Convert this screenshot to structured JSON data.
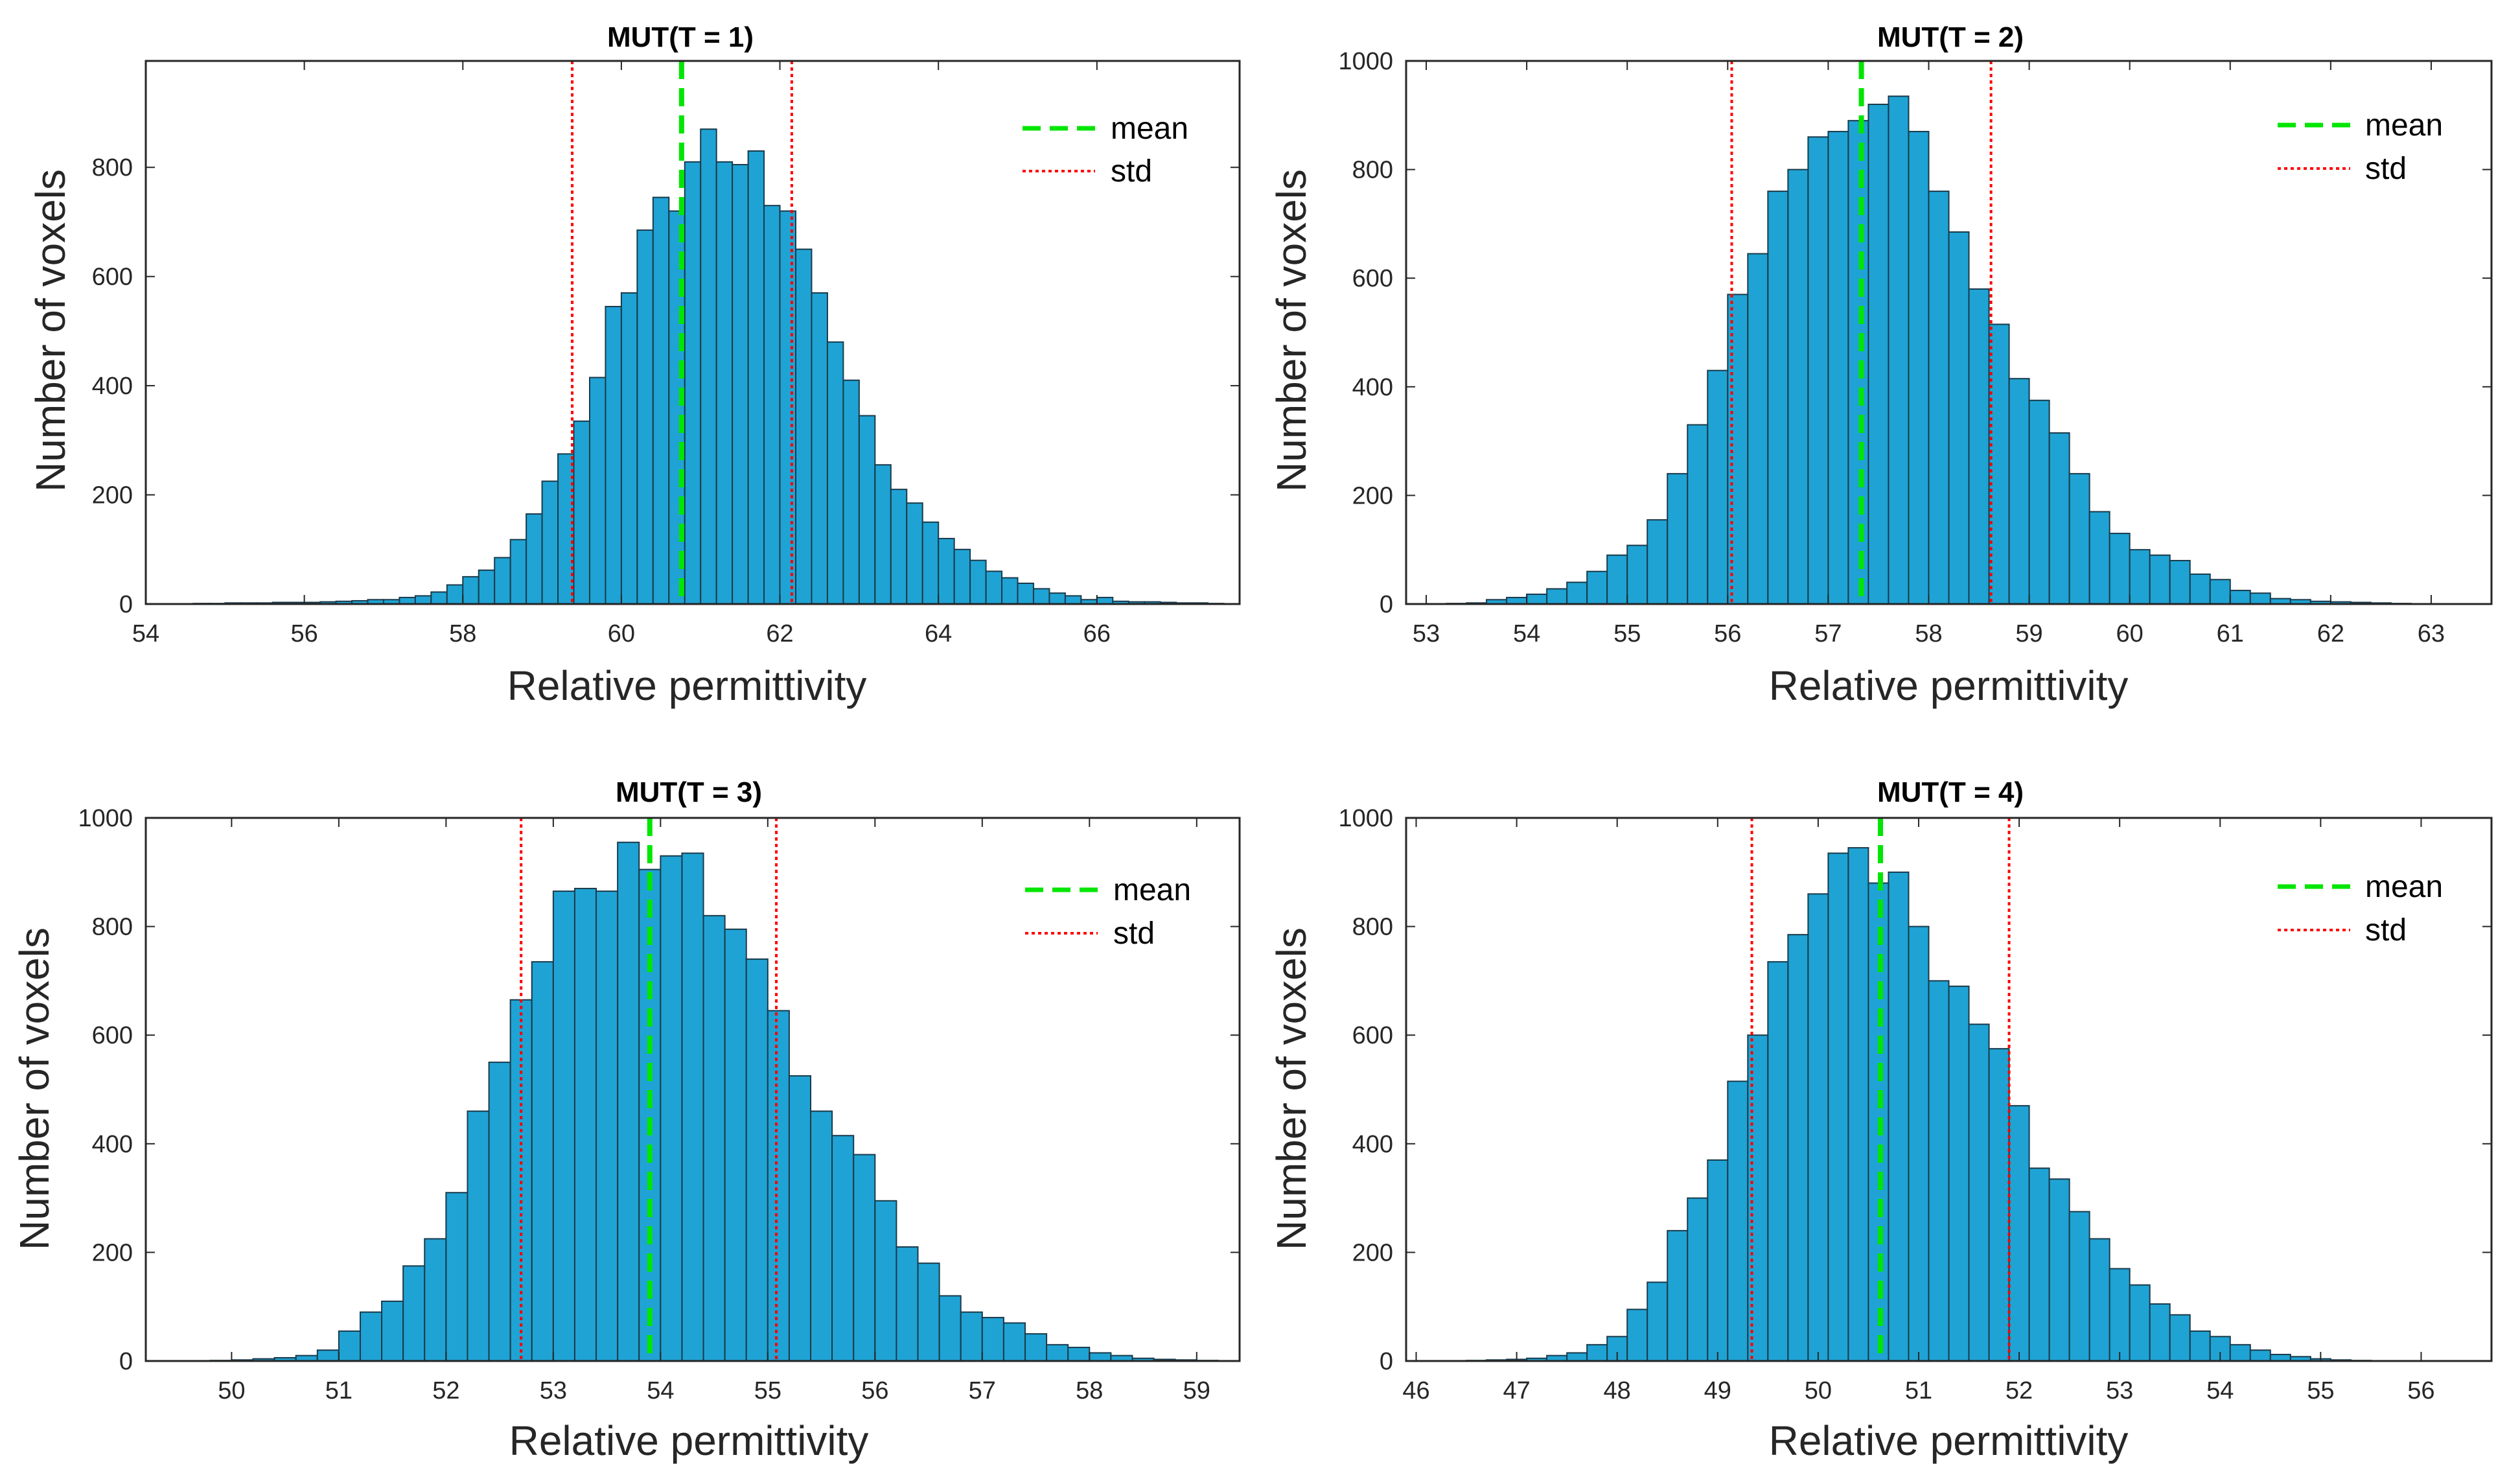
{
  "colors": {
    "bar": "#1fa3d4",
    "mean": "#00e600",
    "std": "#ff0000"
  },
  "chart_data": [
    {
      "type": "bar",
      "title": "MUT(T = 1)",
      "xlabel": "Relative permittivity",
      "ylabel": "Number of voxels",
      "xlim": [
        54,
        67.8
      ],
      "ylim": [
        0,
        995
      ],
      "xticks": [
        54,
        56,
        58,
        60,
        62,
        64,
        66
      ],
      "yticks": [
        0,
        200,
        400,
        600,
        800
      ],
      "bin_start": 54.6,
      "bin_width": 0.2,
      "values": [
        1,
        1,
        2,
        2,
        2,
        3,
        3,
        3,
        4,
        5,
        6,
        8,
        8,
        12,
        15,
        22,
        35,
        50,
        62,
        85,
        118,
        165,
        225,
        275,
        335,
        415,
        545,
        570,
        685,
        745,
        720,
        810,
        870,
        810,
        805,
        830,
        730,
        720,
        650,
        570,
        480,
        410,
        345,
        255,
        210,
        185,
        150,
        120,
        100,
        80,
        60,
        48,
        38,
        28,
        20,
        15,
        8,
        12,
        5,
        4,
        4,
        3,
        2,
        2,
        1
      ],
      "mean": 60.76,
      "std_lines": [
        59.38,
        62.15
      ],
      "legend": [
        "mean",
        "std"
      ]
    },
    {
      "type": "bar",
      "title": "MUT(T = 2)",
      "xlabel": "Relative permittivity",
      "ylabel": "Number of voxels",
      "xlim": [
        52.8,
        63.6
      ],
      "ylim": [
        0,
        1000
      ],
      "xticks": [
        53,
        54,
        55,
        56,
        57,
        58,
        59,
        60,
        61,
        62,
        63
      ],
      "yticks": [
        0,
        200,
        400,
        600,
        800,
        1000
      ],
      "bin_start": 53.2,
      "bin_width": 0.2,
      "values": [
        1,
        2,
        8,
        12,
        18,
        28,
        40,
        60,
        90,
        108,
        155,
        240,
        330,
        430,
        570,
        645,
        760,
        800,
        860,
        870,
        890,
        920,
        935,
        870,
        760,
        685,
        580,
        515,
        415,
        375,
        315,
        240,
        170,
        130,
        100,
        90,
        80,
        55,
        45,
        25,
        20,
        10,
        8,
        5,
        4,
        3,
        2,
        1
      ],
      "mean": 57.33,
      "std_lines": [
        56.04,
        58.62
      ],
      "legend": [
        "mean",
        "std"
      ]
    },
    {
      "type": "bar",
      "title": "MUT(T = 3)",
      "xlabel": "Relative permittivity",
      "ylabel": "Number of voxels",
      "xlim": [
        49.2,
        59.4
      ],
      "ylim": [
        0,
        1000
      ],
      "xticks": [
        50,
        51,
        52,
        53,
        54,
        55,
        56,
        57,
        58,
        59
      ],
      "yticks": [
        0,
        200,
        400,
        600,
        800,
        1000
      ],
      "bin_start": 49.8,
      "bin_width": 0.2,
      "values": [
        1,
        2,
        4,
        6,
        10,
        20,
        55,
        90,
        110,
        175,
        225,
        310,
        460,
        550,
        665,
        735,
        865,
        870,
        865,
        955,
        905,
        930,
        935,
        820,
        795,
        740,
        645,
        525,
        460,
        415,
        380,
        295,
        210,
        180,
        120,
        90,
        80,
        70,
        50,
        30,
        25,
        15,
        10,
        5,
        3,
        2,
        1
      ],
      "mean": 53.9,
      "std_lines": [
        52.7,
        55.08
      ],
      "legend": [
        "mean",
        "std"
      ]
    },
    {
      "type": "bar",
      "title": "MUT(T = 4)",
      "xlabel": "Relative permittivity",
      "ylabel": "Number of voxels",
      "xlim": [
        45.9,
        56.7
      ],
      "ylim": [
        0,
        1000
      ],
      "xticks": [
        46,
        47,
        48,
        49,
        50,
        51,
        52,
        53,
        54,
        55,
        56
      ],
      "yticks": [
        0,
        200,
        400,
        600,
        800,
        1000
      ],
      "bin_start": 46.5,
      "bin_width": 0.2,
      "values": [
        1,
        2,
        3,
        5,
        10,
        15,
        30,
        45,
        95,
        145,
        240,
        300,
        370,
        515,
        600,
        735,
        785,
        860,
        935,
        945,
        880,
        900,
        800,
        700,
        690,
        620,
        575,
        470,
        355,
        335,
        275,
        225,
        170,
        140,
        105,
        85,
        55,
        45,
        30,
        20,
        12,
        8,
        4,
        2,
        1
      ],
      "mean": 50.62,
      "std_lines": [
        49.34,
        51.9
      ],
      "legend": [
        "mean",
        "std"
      ]
    }
  ]
}
